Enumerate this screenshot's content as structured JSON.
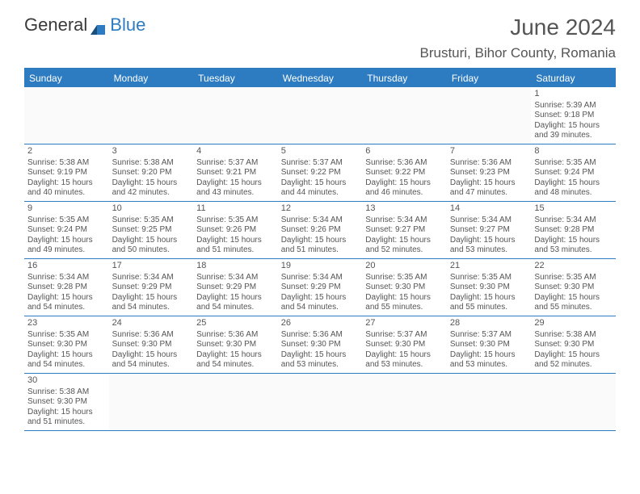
{
  "logo": {
    "text1": "General",
    "text2": "Blue"
  },
  "title": "June 2024",
  "location": "Brusturi, Bihor County, Romania",
  "colors": {
    "header_bg": "#2d7cc1",
    "border": "#2d7cc1",
    "text": "#555555",
    "empty_bg": "#fafafa",
    "background": "#ffffff"
  },
  "dow": [
    "Sunday",
    "Monday",
    "Tuesday",
    "Wednesday",
    "Thursday",
    "Friday",
    "Saturday"
  ],
  "weeks": [
    [
      null,
      null,
      null,
      null,
      null,
      null,
      {
        "n": "1",
        "sr": "5:39 AM",
        "ss": "9:18 PM",
        "dh": "15",
        "dm": "39"
      }
    ],
    [
      {
        "n": "2",
        "sr": "5:38 AM",
        "ss": "9:19 PM",
        "dh": "15",
        "dm": "40"
      },
      {
        "n": "3",
        "sr": "5:38 AM",
        "ss": "9:20 PM",
        "dh": "15",
        "dm": "42"
      },
      {
        "n": "4",
        "sr": "5:37 AM",
        "ss": "9:21 PM",
        "dh": "15",
        "dm": "43"
      },
      {
        "n": "5",
        "sr": "5:37 AM",
        "ss": "9:22 PM",
        "dh": "15",
        "dm": "44"
      },
      {
        "n": "6",
        "sr": "5:36 AM",
        "ss": "9:22 PM",
        "dh": "15",
        "dm": "46"
      },
      {
        "n": "7",
        "sr": "5:36 AM",
        "ss": "9:23 PM",
        "dh": "15",
        "dm": "47"
      },
      {
        "n": "8",
        "sr": "5:35 AM",
        "ss": "9:24 PM",
        "dh": "15",
        "dm": "48"
      }
    ],
    [
      {
        "n": "9",
        "sr": "5:35 AM",
        "ss": "9:24 PM",
        "dh": "15",
        "dm": "49"
      },
      {
        "n": "10",
        "sr": "5:35 AM",
        "ss": "9:25 PM",
        "dh": "15",
        "dm": "50"
      },
      {
        "n": "11",
        "sr": "5:35 AM",
        "ss": "9:26 PM",
        "dh": "15",
        "dm": "51"
      },
      {
        "n": "12",
        "sr": "5:34 AM",
        "ss": "9:26 PM",
        "dh": "15",
        "dm": "51"
      },
      {
        "n": "13",
        "sr": "5:34 AM",
        "ss": "9:27 PM",
        "dh": "15",
        "dm": "52"
      },
      {
        "n": "14",
        "sr": "5:34 AM",
        "ss": "9:27 PM",
        "dh": "15",
        "dm": "53"
      },
      {
        "n": "15",
        "sr": "5:34 AM",
        "ss": "9:28 PM",
        "dh": "15",
        "dm": "53"
      }
    ],
    [
      {
        "n": "16",
        "sr": "5:34 AM",
        "ss": "9:28 PM",
        "dh": "15",
        "dm": "54"
      },
      {
        "n": "17",
        "sr": "5:34 AM",
        "ss": "9:29 PM",
        "dh": "15",
        "dm": "54"
      },
      {
        "n": "18",
        "sr": "5:34 AM",
        "ss": "9:29 PM",
        "dh": "15",
        "dm": "54"
      },
      {
        "n": "19",
        "sr": "5:34 AM",
        "ss": "9:29 PM",
        "dh": "15",
        "dm": "54"
      },
      {
        "n": "20",
        "sr": "5:35 AM",
        "ss": "9:30 PM",
        "dh": "15",
        "dm": "55"
      },
      {
        "n": "21",
        "sr": "5:35 AM",
        "ss": "9:30 PM",
        "dh": "15",
        "dm": "55"
      },
      {
        "n": "22",
        "sr": "5:35 AM",
        "ss": "9:30 PM",
        "dh": "15",
        "dm": "55"
      }
    ],
    [
      {
        "n": "23",
        "sr": "5:35 AM",
        "ss": "9:30 PM",
        "dh": "15",
        "dm": "54"
      },
      {
        "n": "24",
        "sr": "5:36 AM",
        "ss": "9:30 PM",
        "dh": "15",
        "dm": "54"
      },
      {
        "n": "25",
        "sr": "5:36 AM",
        "ss": "9:30 PM",
        "dh": "15",
        "dm": "54"
      },
      {
        "n": "26",
        "sr": "5:36 AM",
        "ss": "9:30 PM",
        "dh": "15",
        "dm": "53"
      },
      {
        "n": "27",
        "sr": "5:37 AM",
        "ss": "9:30 PM",
        "dh": "15",
        "dm": "53"
      },
      {
        "n": "28",
        "sr": "5:37 AM",
        "ss": "9:30 PM",
        "dh": "15",
        "dm": "53"
      },
      {
        "n": "29",
        "sr": "5:38 AM",
        "ss": "9:30 PM",
        "dh": "15",
        "dm": "52"
      }
    ],
    [
      {
        "n": "30",
        "sr": "5:38 AM",
        "ss": "9:30 PM",
        "dh": "15",
        "dm": "51"
      },
      null,
      null,
      null,
      null,
      null,
      null
    ]
  ],
  "labels": {
    "sunrise": "Sunrise:",
    "sunset": "Sunset:",
    "daylight_prefix": "Daylight:",
    "hours": "hours",
    "and": "and",
    "minutes": "minutes."
  }
}
